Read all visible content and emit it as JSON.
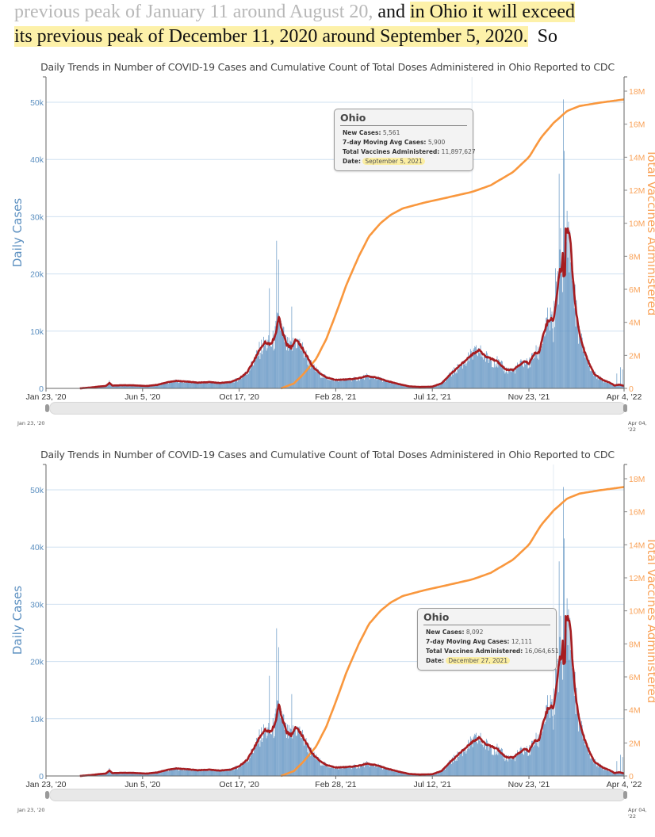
{
  "prose": {
    "line1_faded": "previous peak of January 11 around August 20,",
    "line1_normal": " and ",
    "line1_highlight": "in Ohio it will exceed",
    "line2_highlight": "its previous peak of December 11, 2020 around September 5, 2020.",
    "line2_normal": "  So"
  },
  "colors": {
    "bars": "#5b8fc0",
    "moving_avg": "#a61c20",
    "vaccines": "#f9973d",
    "left_axis_text": "#5b8fc0",
    "right_axis_text": "#f9a35a",
    "gridline": "#cfe0f0"
  },
  "charts": [
    {
      "title": "Daily Trends in Number of COVID-19 Cases and Cumulative Count of Total Doses Administered in Ohio Reported to CDC",
      "tooltip": {
        "title": "Ohio",
        "new_cases_label": "New Cases:",
        "new_cases": "5,561",
        "avg_label": "7-day Moving Avg Cases:",
        "avg": "5,900",
        "vacc_label": "Total Vaccines Administered:",
        "vacc": "11,897,627",
        "date_label": "Date:",
        "date": "September 5, 2021"
      },
      "hover_date": "2021-09-05",
      "range_start": "Jan 23, '20",
      "range_end": "Apr 04, '22"
    },
    {
      "title": "Daily Trends in Number of COVID-19 Cases and Cumulative Count of Total Doses Administered in Ohio Reported to CDC",
      "tooltip": {
        "title": "Ohio",
        "new_cases_label": "New Cases:",
        "new_cases": "8,092",
        "avg_label": "7-day Moving Avg Cases:",
        "avg": "12,111",
        "vacc_label": "Total Vaccines Administered:",
        "vacc": "16,064,651",
        "date_label": "Date:",
        "date": "December 27, 2021"
      },
      "hover_date": "2021-12-27",
      "range_start": "Jan 23, '20",
      "range_end": "Apr 04, '22"
    }
  ],
  "chart_data": {
    "type": "bar",
    "title": "Daily Trends in Number of COVID-19 Cases and Cumulative Count of Total Doses Administered in Ohio Reported to CDC",
    "xlabel": "",
    "ylabel": "Daily Cases",
    "y2label": "Total Vaccines Administered",
    "x_range": [
      "2020-01-23",
      "2022-04-04"
    ],
    "x_ticks": [
      "Jan 23, '20",
      "Jun 5, '20",
      "Oct 17, '20",
      "Feb 28, '21",
      "Jul 12, '21",
      "Nov 23, '21",
      "Apr 4, '22"
    ],
    "x_tick_dates": [
      "2020-01-23",
      "2020-06-05",
      "2020-10-17",
      "2021-02-28",
      "2021-07-12",
      "2021-11-23",
      "2022-04-04"
    ],
    "ylim": [
      0,
      52000
    ],
    "y_ticks": [
      0,
      10000,
      20000,
      30000,
      40000,
      50000
    ],
    "y_tick_labels": [
      "0",
      "10k",
      "20k",
      "30k",
      "40k",
      "50k"
    ],
    "y2lim": [
      0,
      18000000
    ],
    "y2_ticks": [
      0,
      2000000,
      4000000,
      6000000,
      8000000,
      10000000,
      12000000,
      14000000,
      16000000,
      18000000
    ],
    "y2_tick_labels": [
      "0",
      "2M",
      "4M",
      "6M",
      "8M",
      "10M",
      "12M",
      "14M",
      "16M",
      "18M"
    ],
    "grid": true,
    "legend": "none",
    "series": [
      {
        "name": "7-day Moving Avg Cases",
        "type": "line",
        "axis": "left",
        "points": [
          [
            "2020-03-10",
            0
          ],
          [
            "2020-03-25",
            150
          ],
          [
            "2020-04-08",
            350
          ],
          [
            "2020-04-15",
            420
          ],
          [
            "2020-04-20",
            950
          ],
          [
            "2020-04-24",
            500
          ],
          [
            "2020-05-10",
            550
          ],
          [
            "2020-05-25",
            520
          ],
          [
            "2020-06-10",
            420
          ],
          [
            "2020-06-25",
            600
          ],
          [
            "2020-07-10",
            1100
          ],
          [
            "2020-07-22",
            1300
          ],
          [
            "2020-08-05",
            1200
          ],
          [
            "2020-08-20",
            1000
          ],
          [
            "2020-09-05",
            1100
          ],
          [
            "2020-09-20",
            950
          ],
          [
            "2020-10-05",
            1100
          ],
          [
            "2020-10-17",
            1700
          ],
          [
            "2020-10-28",
            2800
          ],
          [
            "2020-11-08",
            5200
          ],
          [
            "2020-11-16",
            7200
          ],
          [
            "2020-11-22",
            8000
          ],
          [
            "2020-11-29",
            7700
          ],
          [
            "2020-12-05",
            8800
          ],
          [
            "2020-12-11",
            12400
          ],
          [
            "2020-12-16",
            10000
          ],
          [
            "2020-12-22",
            7600
          ],
          [
            "2020-12-28",
            7100
          ],
          [
            "2021-01-04",
            8600
          ],
          [
            "2021-01-10",
            7600
          ],
          [
            "2021-01-18",
            5800
          ],
          [
            "2021-01-26",
            4000
          ],
          [
            "2021-02-05",
            2700
          ],
          [
            "2021-02-15",
            1900
          ],
          [
            "2021-02-28",
            1500
          ],
          [
            "2021-03-15",
            1550
          ],
          [
            "2021-03-31",
            1750
          ],
          [
            "2021-04-12",
            2150
          ],
          [
            "2021-04-25",
            1900
          ],
          [
            "2021-05-10",
            1300
          ],
          [
            "2021-05-25",
            800
          ],
          [
            "2021-06-10",
            350
          ],
          [
            "2021-06-25",
            250
          ],
          [
            "2021-07-12",
            300
          ],
          [
            "2021-07-25",
            900
          ],
          [
            "2021-08-08",
            2700
          ],
          [
            "2021-08-22",
            4300
          ],
          [
            "2021-09-05",
            5900
          ],
          [
            "2021-09-14",
            6700
          ],
          [
            "2021-09-25",
            5500
          ],
          [
            "2021-10-10",
            4700
          ],
          [
            "2021-10-22",
            3300
          ],
          [
            "2021-11-01",
            3200
          ],
          [
            "2021-11-12",
            4300
          ],
          [
            "2021-11-18",
            4800
          ],
          [
            "2021-11-23",
            4300
          ],
          [
            "2021-12-01",
            6200
          ],
          [
            "2021-12-07",
            6300
          ],
          [
            "2021-12-14",
            9800
          ],
          [
            "2021-12-20",
            12000
          ],
          [
            "2021-12-27",
            12111
          ],
          [
            "2021-12-31",
            15500
          ],
          [
            "2022-01-04",
            20200
          ],
          [
            "2022-01-07",
            20500
          ],
          [
            "2022-01-09",
            23000
          ],
          [
            "2022-01-10",
            19800
          ],
          [
            "2022-01-12",
            19700
          ],
          [
            "2022-01-13",
            27500
          ],
          [
            "2022-01-17",
            27800
          ],
          [
            "2022-01-19",
            27000
          ],
          [
            "2022-01-23",
            19000
          ],
          [
            "2022-01-28",
            13000
          ],
          [
            "2022-02-02",
            9000
          ],
          [
            "2022-02-08",
            6500
          ],
          [
            "2022-02-15",
            4200
          ],
          [
            "2022-02-22",
            2500
          ],
          [
            "2022-03-05",
            1500
          ],
          [
            "2022-03-15",
            1000
          ],
          [
            "2022-03-22",
            500
          ],
          [
            "2022-03-28",
            650
          ],
          [
            "2022-04-04",
            450
          ]
        ]
      },
      {
        "name": "New Cases",
        "type": "bar",
        "axis": "left",
        "spikes": [
          [
            "2020-04-20",
            1400
          ],
          [
            "2020-11-28",
            17500
          ],
          [
            "2020-12-08",
            25800
          ],
          [
            "2020-12-11",
            22500
          ],
          [
            "2020-12-29",
            14300
          ],
          [
            "2021-09-05",
            5561
          ],
          [
            "2021-12-27",
            8092
          ],
          [
            "2021-12-30",
            21000
          ],
          [
            "2022-01-04",
            37500
          ],
          [
            "2022-01-06",
            28000
          ],
          [
            "2022-01-10",
            50500
          ],
          [
            "2022-01-11",
            41500
          ],
          [
            "2022-01-20",
            22000
          ],
          [
            "2022-03-25",
            2600
          ],
          [
            "2022-03-30",
            3700
          ],
          [
            "2022-04-02",
            3300
          ]
        ]
      },
      {
        "name": "Total Vaccines Administered",
        "type": "line",
        "axis": "right",
        "points": [
          [
            "2020-12-14",
            0
          ],
          [
            "2021-01-01",
            300000
          ],
          [
            "2021-01-15",
            900000
          ],
          [
            "2021-02-01",
            1800000
          ],
          [
            "2021-02-15",
            3000000
          ],
          [
            "2021-03-01",
            4600000
          ],
          [
            "2021-03-15",
            6300000
          ],
          [
            "2021-04-01",
            8000000
          ],
          [
            "2021-04-15",
            9200000
          ],
          [
            "2021-05-01",
            10000000
          ],
          [
            "2021-05-15",
            10500000
          ],
          [
            "2021-06-01",
            10900000
          ],
          [
            "2021-07-01",
            11250000
          ],
          [
            "2021-08-01",
            11550000
          ],
          [
            "2021-09-05",
            11897627
          ],
          [
            "2021-10-01",
            12300000
          ],
          [
            "2021-11-01",
            13100000
          ],
          [
            "2021-11-23",
            14000000
          ],
          [
            "2021-12-10",
            15200000
          ],
          [
            "2021-12-27",
            16064651
          ],
          [
            "2022-01-15",
            16800000
          ],
          [
            "2022-02-01",
            17100000
          ],
          [
            "2022-03-01",
            17300000
          ],
          [
            "2022-04-04",
            17500000
          ]
        ]
      }
    ]
  }
}
